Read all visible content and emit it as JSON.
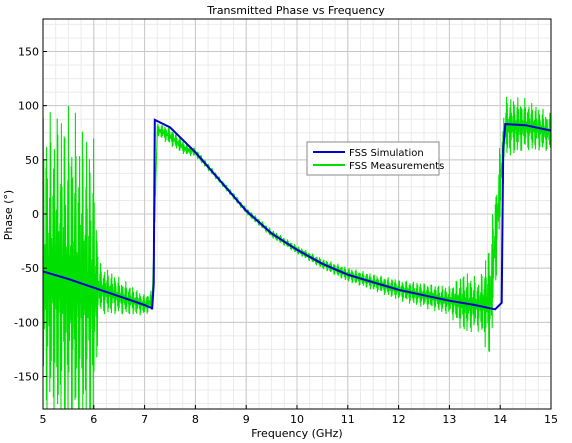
{
  "chart_data": {
    "type": "line",
    "title": "Transmitted Phase vs Frequency",
    "xlabel": "Frequency (GHz)",
    "ylabel": "Phase (°)",
    "xlim": [
      5,
      15
    ],
    "ylim": [
      -180,
      180
    ],
    "x_ticks": [
      "5",
      "6",
      "7",
      "8",
      "9",
      "10",
      "11",
      "12",
      "13",
      "14",
      "15"
    ],
    "y_ticks": [
      "-150",
      "-100",
      "-50",
      "0",
      "50",
      "100",
      "150"
    ],
    "grid": true,
    "legend_position": "upper-right",
    "series": [
      {
        "name": "FSS Simulation",
        "color": "#0000cc",
        "x": [
          5.0,
          5.5,
          6.0,
          6.5,
          7.0,
          7.15,
          7.18,
          7.2,
          7.5,
          8.0,
          8.5,
          9.0,
          9.5,
          10.0,
          10.5,
          11.0,
          11.5,
          12.0,
          12.5,
          13.0,
          13.5,
          13.9,
          14.03,
          14.06,
          14.1,
          14.5,
          15.0
        ],
        "y": [
          -53,
          -60,
          -68,
          -76,
          -84,
          -87,
          -65,
          87,
          80,
          57,
          30,
          3,
          -18,
          -33,
          -46,
          -56,
          -63,
          -70,
          -75,
          -80,
          -84,
          -88,
          -82,
          60,
          83,
          82,
          77
        ]
      },
      {
        "name": "FSS Measurements",
        "color": "#00e000",
        "x": [
          5.0,
          5.5,
          6.0,
          6.1,
          6.5,
          7.0,
          7.15,
          7.25,
          7.5,
          7.8,
          8.0,
          8.5,
          9.0,
          9.5,
          10.0,
          10.5,
          11.0,
          11.5,
          12.0,
          12.5,
          13.0,
          13.3,
          13.6,
          13.8,
          13.95,
          14.1,
          14.5,
          15.0
        ],
        "y": [
          -53,
          -60,
          -68,
          -69,
          -76,
          -84,
          -80,
          78,
          72,
          60,
          57,
          30,
          3,
          -18,
          -33,
          -46,
          -56,
          -63,
          -70,
          -75,
          -80,
          -82,
          -84,
          -80,
          0,
          80,
          82,
          75
        ],
        "amplitude": [
          150,
          165,
          140,
          25,
          18,
          10,
          10,
          6,
          9,
          6,
          4,
          3,
          3,
          4,
          4,
          5,
          7,
          8,
          10,
          12,
          14,
          30,
          25,
          60,
          45,
          30,
          25,
          18
        ]
      }
    ]
  }
}
